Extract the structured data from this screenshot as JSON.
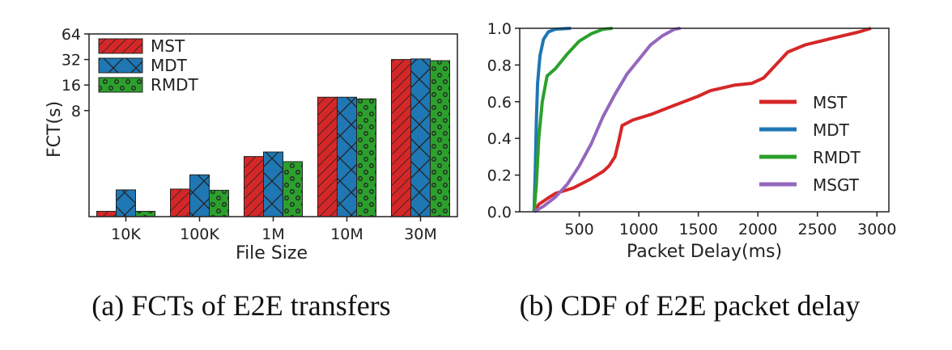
{
  "chart_data": [
    {
      "type": "bar",
      "caption": "(a) FCTs of E2E transfers",
      "xlabel": "File Size",
      "ylabel": "FCT(s)",
      "yscale": "log2",
      "ylim": [
        0.45,
        64
      ],
      "yticks": [
        8,
        16,
        32,
        64
      ],
      "ytick_labels": [
        "8",
        "16",
        "32",
        "64"
      ],
      "categories": [
        "10K",
        "100K",
        "1M",
        "10M",
        "30M"
      ],
      "series": [
        {
          "name": "MST",
          "color": "#d62728",
          "hatch": "diagonal",
          "values": [
            0.52,
            0.95,
            2.3,
            11.5,
            32
          ]
        },
        {
          "name": "MDT",
          "color": "#1f77b4",
          "hatch": "cross",
          "values": [
            0.93,
            1.4,
            2.6,
            11.5,
            32.5
          ]
        },
        {
          "name": "RMDT",
          "color": "#2ca02c",
          "hatch": "circles",
          "values": [
            0.52,
            0.92,
            2.0,
            11.0,
            31
          ]
        }
      ],
      "legend": "top-left"
    },
    {
      "type": "line",
      "caption": "(b) CDF of E2E packet delay",
      "xlabel": "Packet Delay(ms)",
      "ylabel": "",
      "xlim": [
        0,
        3100
      ],
      "ylim": [
        0,
        1.0
      ],
      "xticks": [
        500,
        1000,
        1500,
        2000,
        2500,
        3000
      ],
      "yticks": [
        0.0,
        0.2,
        0.4,
        0.6,
        0.8,
        1.0
      ],
      "ytick_labels": [
        "0.0",
        "0.2",
        "0.4",
        "0.6",
        "0.8",
        "1.0"
      ],
      "series": [
        {
          "name": "MST",
          "color": "#d62728",
          "points": [
            [
              120,
              0
            ],
            [
              160,
              0.04
            ],
            [
              250,
              0.08
            ],
            [
              300,
              0.1
            ],
            [
              450,
              0.13
            ],
            [
              600,
              0.18
            ],
            [
              700,
              0.22
            ],
            [
              750,
              0.25
            ],
            [
              800,
              0.3
            ],
            [
              830,
              0.38
            ],
            [
              860,
              0.47
            ],
            [
              950,
              0.5
            ],
            [
              1100,
              0.53
            ],
            [
              1300,
              0.58
            ],
            [
              1500,
              0.63
            ],
            [
              1600,
              0.66
            ],
            [
              1800,
              0.69
            ],
            [
              1950,
              0.7
            ],
            [
              2050,
              0.73
            ],
            [
              2150,
              0.8
            ],
            [
              2250,
              0.87
            ],
            [
              2400,
              0.91
            ],
            [
              2650,
              0.95
            ],
            [
              2850,
              0.98
            ],
            [
              2950,
              1.0
            ]
          ]
        },
        {
          "name": "MDT",
          "color": "#1f77b4",
          "points": [
            [
              120,
              0
            ],
            [
              130,
              0.2
            ],
            [
              140,
              0.5
            ],
            [
              150,
              0.7
            ],
            [
              170,
              0.85
            ],
            [
              200,
              0.94
            ],
            [
              240,
              0.98
            ],
            [
              300,
              0.995
            ],
            [
              430,
              1.0
            ]
          ]
        },
        {
          "name": "RMDT",
          "color": "#2ca02c",
          "points": [
            [
              120,
              0
            ],
            [
              140,
              0.15
            ],
            [
              160,
              0.4
            ],
            [
              190,
              0.6
            ],
            [
              230,
              0.74
            ],
            [
              300,
              0.78
            ],
            [
              400,
              0.86
            ],
            [
              500,
              0.93
            ],
            [
              600,
              0.97
            ],
            [
              700,
              0.995
            ],
            [
              780,
              1.0
            ]
          ]
        },
        {
          "name": "MSGT",
          "color": "#9467bd",
          "points": [
            [
              120,
              0
            ],
            [
              200,
              0.03
            ],
            [
              300,
              0.08
            ],
            [
              400,
              0.15
            ],
            [
              500,
              0.25
            ],
            [
              600,
              0.37
            ],
            [
              700,
              0.52
            ],
            [
              800,
              0.64
            ],
            [
              900,
              0.75
            ],
            [
              1000,
              0.83
            ],
            [
              1100,
              0.91
            ],
            [
              1200,
              0.96
            ],
            [
              1300,
              0.995
            ],
            [
              1350,
              1.0
            ]
          ]
        }
      ],
      "legend": "right"
    }
  ]
}
